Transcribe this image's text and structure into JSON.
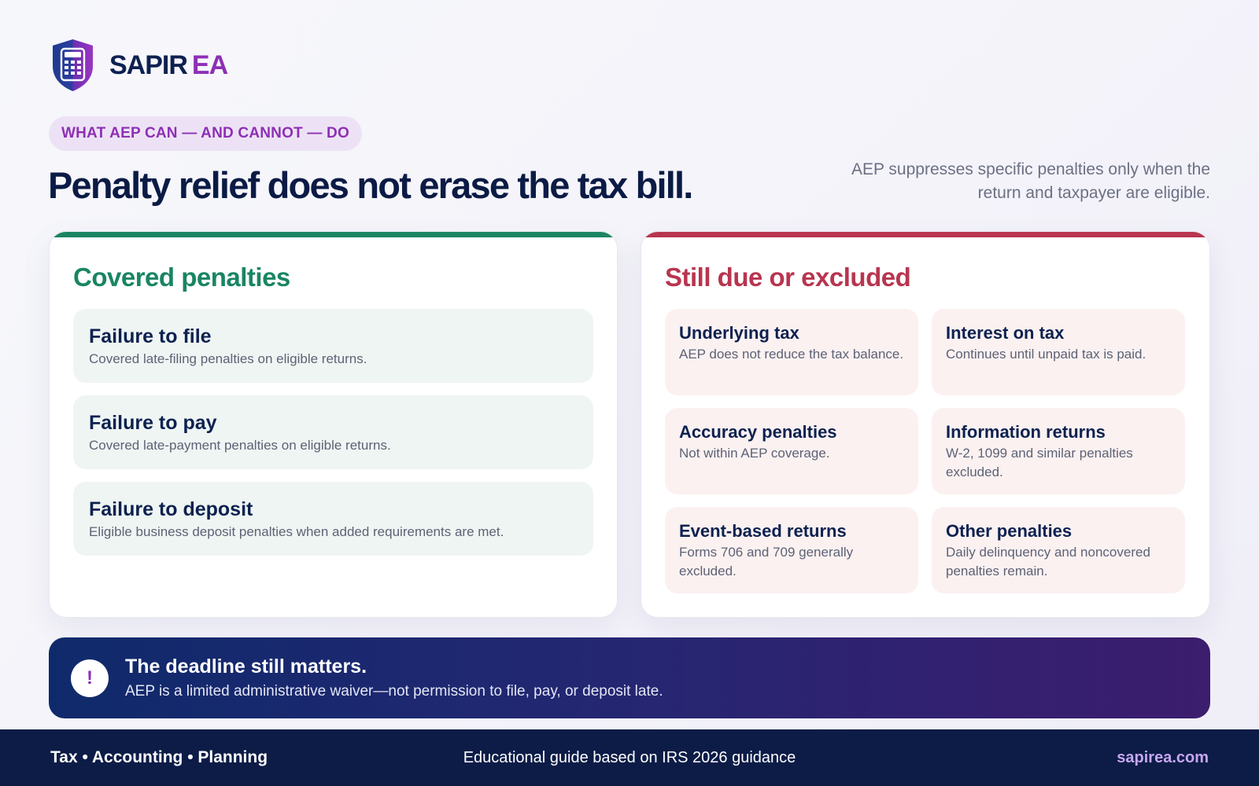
{
  "brand": {
    "name_part1": "SAPIR",
    "name_part2": "EA",
    "logo_icon": "shield-calculator-icon",
    "colors": {
      "navy": "#0d2150",
      "purple": "#8e2fb5"
    }
  },
  "eyebrow": "WHAT AEP CAN — AND CANNOT — DO",
  "headline": "Penalty relief does not erase the tax bill.",
  "subline": "AEP suppresses specific penalties only when the return and taxpayer are eligible.",
  "covered": {
    "title": "Covered penalties",
    "accent": "#1a8563",
    "items": [
      {
        "title": "Failure to file",
        "desc": "Covered late-filing penalties on eligible returns."
      },
      {
        "title": "Failure to pay",
        "desc": "Covered late-payment penalties on eligible returns."
      },
      {
        "title": "Failure to deposit",
        "desc": "Eligible business deposit penalties when added requirements are met."
      }
    ]
  },
  "excluded": {
    "title": "Still due or excluded",
    "accent": "#b8354f",
    "items": [
      {
        "title": "Underlying tax",
        "desc": "AEP does not reduce the tax balance."
      },
      {
        "title": "Interest on tax",
        "desc": "Continues until unpaid tax is paid."
      },
      {
        "title": "Accuracy penalties",
        "desc": "Not within AEP coverage."
      },
      {
        "title": "Information returns",
        "desc": "W-2, 1099 and similar penalties excluded."
      },
      {
        "title": "Event-based returns",
        "desc": "Forms 706 and 709 generally excluded."
      },
      {
        "title": "Other penalties",
        "desc": "Daily delinquency and noncovered penalties remain."
      }
    ]
  },
  "callout": {
    "icon": "exclamation-icon",
    "icon_text": "!",
    "title": "The deadline still matters.",
    "text": "AEP is a limited administrative waiver—not permission to file, pay, or deposit late."
  },
  "footer": {
    "left": "Tax • Accounting • Planning",
    "center": "Educational guide based on IRS 2026 guidance",
    "right": "sapirea.com"
  }
}
